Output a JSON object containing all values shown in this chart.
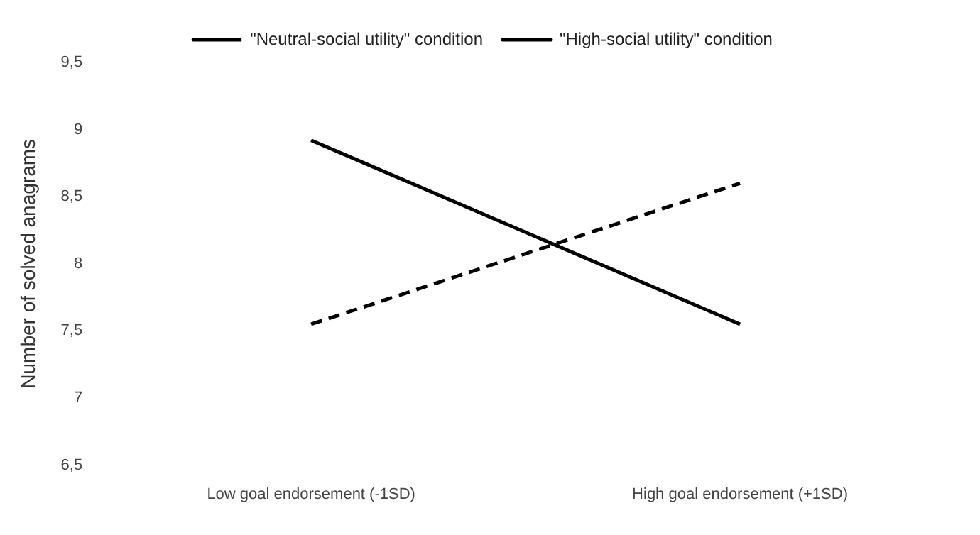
{
  "chart_data": {
    "type": "line",
    "categories": [
      "Low goal endorsement (-1SD)",
      "High goal endorsement (+1SD)"
    ],
    "ylabel": "Number of solved anagrams",
    "ylim": [
      6.5,
      9.5
    ],
    "yticks": [
      {
        "value": 6.5,
        "label": "6,5"
      },
      7,
      {
        "value": 7.5,
        "label": "7,5"
      },
      8,
      {
        "value": 8.5,
        "label": "8,5"
      },
      9,
      {
        "value": 9.5,
        "label": "9,5"
      }
    ],
    "series": [
      {
        "name": "\"Neutral-social utility\" condition",
        "color": "#000000",
        "values": [
          7.55,
          8.6
        ],
        "line_style": "dashed"
      },
      {
        "name": "\"High-social utility\" condition",
        "color": "#000000",
        "values": [
          8.92,
          7.55
        ],
        "line_style": "solid"
      }
    ],
    "legend": "top",
    "grid": false,
    "marker": "none"
  }
}
